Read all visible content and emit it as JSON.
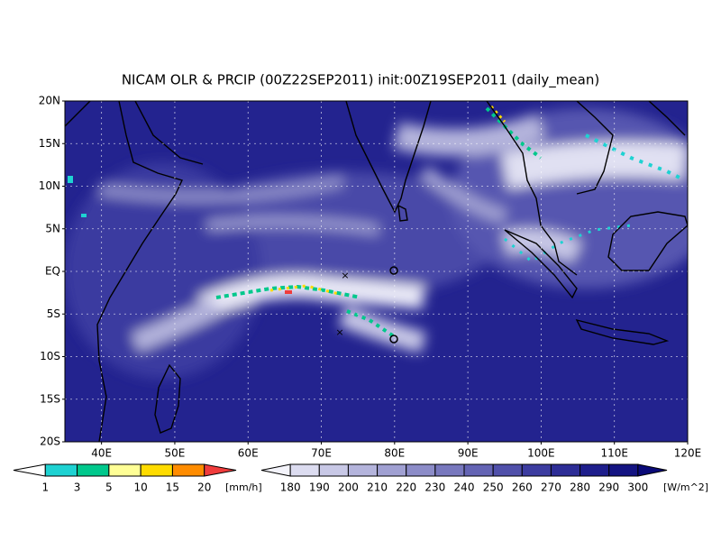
{
  "title": "NICAM OLR & PRCIP (00Z22SEP2011) init:00Z19SEP2011 (daily_mean)",
  "map": {
    "lat_labels": [
      "20N",
      "15N",
      "10N",
      "5N",
      "EQ",
      "5S",
      "10S",
      "15S",
      "20S"
    ],
    "lon_labels": [
      "40E",
      "50E",
      "60E",
      "70E",
      "80E",
      "90E",
      "100E",
      "110E",
      "120E"
    ]
  },
  "precip_legend": {
    "labels": [
      1,
      3,
      5,
      10,
      15,
      20
    ],
    "unit": "[mm/h]",
    "colors": [
      "#ffffff",
      "#1ed2d2",
      "#00c88c",
      "#ffff96",
      "#ffdc00",
      "#ff8c00",
      "#f03c3c"
    ]
  },
  "olr_legend": {
    "labels": [
      180,
      190,
      200,
      210,
      220,
      230,
      240,
      250,
      260,
      270,
      280,
      290,
      300
    ],
    "unit": "[W/m^2]",
    "colors": [
      "#f4f4fb",
      "#dcdcf0",
      "#c8c8e6",
      "#b4b4dc",
      "#a0a0d2",
      "#8c8cc8",
      "#7878be",
      "#6464b4",
      "#5050aa",
      "#3c3ca0",
      "#2d2d96",
      "#1e1e8c",
      "#141482",
      "#0a0a78"
    ]
  }
}
